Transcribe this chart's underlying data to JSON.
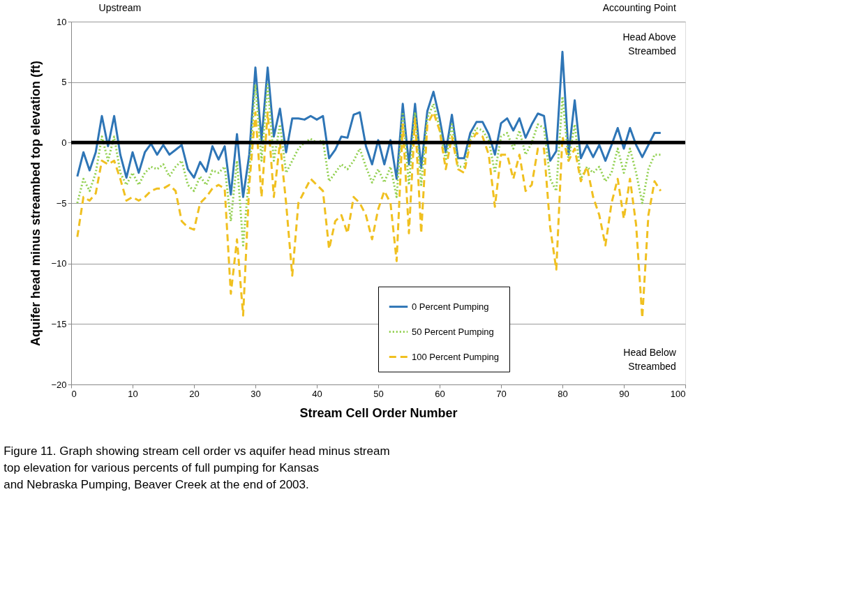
{
  "chart_data": {
    "type": "line",
    "xlabel": "Stream Cell Order Number",
    "ylabel": "Aquifer head minus streambed top elevation (ft)",
    "x": [
      1,
      2,
      3,
      4,
      5,
      6,
      7,
      8,
      9,
      10,
      11,
      12,
      13,
      14,
      15,
      16,
      17,
      18,
      19,
      20,
      21,
      22,
      23,
      24,
      25,
      26,
      27,
      28,
      29,
      30,
      31,
      32,
      33,
      34,
      35,
      36,
      37,
      38,
      39,
      40,
      41,
      42,
      43,
      44,
      45,
      46,
      47,
      48,
      49,
      50,
      51,
      52,
      53,
      54,
      55,
      56,
      57,
      58,
      59,
      60,
      61,
      62,
      63,
      64,
      65,
      66,
      67,
      68,
      69,
      70,
      71,
      72,
      73,
      74,
      75,
      76,
      77,
      78,
      79,
      80,
      81,
      82,
      83,
      84,
      85,
      86,
      87,
      88,
      89,
      90,
      91,
      92,
      93,
      94,
      95,
      96
    ],
    "series": [
      {
        "name": "0 Percent Pumping",
        "color": "#2e75b6",
        "line_style": "solid",
        "values": [
          -2.8,
          -0.8,
          -2.3,
          -0.8,
          2.2,
          -0.3,
          2.2,
          -1.0,
          -2.9,
          -0.8,
          -2.5,
          -0.8,
          -0.1,
          -1.0,
          -0.2,
          -1.0,
          -0.6,
          -0.2,
          -2.2,
          -2.9,
          -1.6,
          -2.4,
          -0.3,
          -1.4,
          -0.3,
          -4.3,
          0.7,
          -4.5,
          -1.0,
          6.2,
          0.2,
          6.2,
          0.5,
          2.8,
          -0.8,
          2.0,
          2.0,
          1.9,
          2.2,
          1.9,
          2.2,
          -1.3,
          -0.6,
          0.5,
          0.4,
          2.3,
          2.5,
          -0.3,
          -1.8,
          0.2,
          -1.8,
          0.2,
          -3.0,
          3.2,
          -1.8,
          3.2,
          -2.1,
          2.6,
          4.2,
          2.0,
          -0.8,
          2.3,
          -1.3,
          -1.3,
          0.8,
          1.7,
          1.7,
          0.7,
          -1.0,
          1.6,
          2.0,
          1.0,
          2.0,
          0.4,
          1.5,
          2.4,
          2.2,
          -1.5,
          -0.7,
          7.5,
          -1.0,
          3.5,
          -1.3,
          -0.2,
          -1.2,
          -0.2,
          -1.5,
          -0.2,
          1.2,
          -0.5,
          1.2,
          -0.2,
          -1.2,
          -0.2,
          0.8,
          0.8
        ]
      },
      {
        "name": "50 Percent Pumping",
        "color": "#92d050",
        "line_style": "dotted",
        "values": [
          -5,
          -3,
          -4,
          -2.5,
          0.5,
          -1.5,
          0.5,
          -2.5,
          -3.5,
          -2.5,
          -3.5,
          -2.5,
          -2,
          -2.2,
          -1.8,
          -2.8,
          -2,
          -1.5,
          -3.5,
          -4,
          -2.8,
          -3.5,
          -2.3,
          -2.5,
          -2,
          -6.5,
          -1.5,
          -8.5,
          -2.5,
          4.8,
          -1.5,
          4.8,
          -1.5,
          1.5,
          -2.5,
          -1.5,
          -0.5,
          0,
          0.3,
          0,
          0.2,
          -3.2,
          -2.5,
          -1.8,
          -2.2,
          -1.5,
          -0.5,
          -2,
          -3.3,
          -2.2,
          -3.3,
          -2,
          -4.5,
          2.5,
          -3.5,
          2.5,
          -3.5,
          2,
          3.2,
          1.2,
          -1.5,
          1.5,
          -2,
          -2,
          0.3,
          1.2,
          1,
          0.2,
          -2.5,
          0.5,
          0.8,
          -0.5,
          1,
          -1,
          0,
          1.5,
          1.2,
          -3,
          -4,
          3.8,
          -1.5,
          1.5,
          -3,
          -2,
          -2.5,
          -2,
          -3.2,
          -2.5,
          -0.5,
          -2.5,
          -0.5,
          -2.5,
          -5,
          -2.2,
          -1,
          -1
        ]
      },
      {
        "name": "100 Percent Pumping",
        "color": "#f0c020",
        "line_style": "dashed",
        "values": [
          -7.8,
          -4.5,
          -4.8,
          -4.2,
          -1.5,
          -1.8,
          -1.5,
          -3,
          -4.8,
          -4.5,
          -4.8,
          -4.5,
          -4,
          -3.8,
          -3.8,
          -3.5,
          -4,
          -6.5,
          -7,
          -7.2,
          -5,
          -4.5,
          -3.8,
          -3.5,
          -3.8,
          -12.5,
          -8,
          -14.3,
          -3.5,
          2.5,
          -4.5,
          2.5,
          -4.5,
          0,
          -5,
          -11,
          -5,
          -4,
          -3,
          -3.5,
          -4,
          -8.8,
          -6.5,
          -6,
          -7.5,
          -4.5,
          -5,
          -6,
          -8,
          -5.5,
          -4,
          -5,
          -9.8,
          1.5,
          -7.5,
          2,
          -7.5,
          1.5,
          2.5,
          1,
          -2.2,
          0.5,
          -2.2,
          -2.5,
          0,
          0.8,
          0.5,
          -1,
          -5.3,
          -1,
          -1,
          -3,
          -1,
          -4,
          -3.5,
          -0.5,
          -0.5,
          -7,
          -10.5,
          0.5,
          -1.5,
          -0.5,
          -3.2,
          -2,
          -4.5,
          -6,
          -8.5,
          -5,
          -3,
          -6.3,
          -3,
          -6.8,
          -14.5,
          -6,
          -3.2,
          -4
        ]
      }
    ],
    "xlim": [
      0,
      100
    ],
    "xticks": [
      0,
      10,
      20,
      30,
      40,
      50,
      60,
      70,
      80,
      90,
      100
    ],
    "ylim": [
      -20,
      10
    ],
    "yticks": [
      -20,
      -15,
      -10,
      -5,
      0,
      5,
      10
    ],
    "grid": "y",
    "legend": "bottom right",
    "marker": "none",
    "ref_lines": [
      {
        "axis": "y",
        "value": 0,
        "color": "#000000",
        "line_style": "solid"
      }
    ],
    "annotations": [
      "Upstream",
      "Accounting Point",
      "Head Above\nStreambed",
      "Head Below\nStreambed",
      "Figure 11. Graph showing  stream cell order vs aquifer head minus stream\n          top elevation  for various percents of full pumping for Kansas\n          and Nebraska Pumping, Beaver Creek at the end of 2003."
    ]
  }
}
